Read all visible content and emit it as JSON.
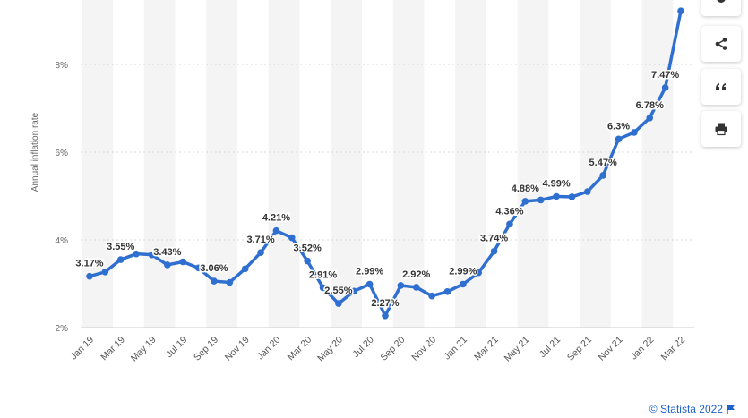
{
  "chart_data": {
    "type": "line",
    "xlabel": "",
    "ylabel": "Annual inflation rate",
    "ylim": [
      2,
      9.3
    ],
    "yticks": [
      2,
      4,
      6,
      8
    ],
    "ytick_labels": [
      "2%",
      "4%",
      "6%",
      "8%"
    ],
    "grid": true,
    "series_color": "#2f6fd0",
    "x": [
      "Jan 19",
      "Feb 19",
      "Mar 19",
      "Apr 19",
      "May 19",
      "Jun 19",
      "Jul 19",
      "Aug 19",
      "Sep 19",
      "Oct 19",
      "Nov 19",
      "Dec 19",
      "Jan 20",
      "Feb 20",
      "Mar 20",
      "Apr 20",
      "May 20",
      "Jun 20",
      "Jul 20",
      "Aug 20",
      "Sep 20",
      "Oct 20",
      "Nov 20",
      "Dec 20",
      "Jan 21",
      "Feb 21",
      "Mar 21",
      "Apr 21",
      "May 21",
      "Jun 21",
      "Jul 21",
      "Aug 21",
      "Sep 21",
      "Oct 21",
      "Nov 21",
      "Dec 21",
      "Jan 22",
      "Feb 22",
      "Mar 22"
    ],
    "xtick_labels": [
      "Jan 19",
      "Mar 19",
      "May 19",
      "Jul 19",
      "Sep 19",
      "Nov 19",
      "Jan 20",
      "Mar 20",
      "May 20",
      "Jul 20",
      "Sep 20",
      "Nov 20",
      "Jan 21",
      "Mar 21",
      "May 21",
      "Jul 21",
      "Sep 21",
      "Nov 21",
      "Jan 22",
      "Mar 22"
    ],
    "values": [
      3.17,
      3.27,
      3.55,
      3.68,
      3.66,
      3.43,
      3.5,
      3.36,
      3.06,
      3.03,
      3.34,
      3.71,
      4.21,
      4.05,
      3.52,
      2.91,
      2.55,
      2.83,
      2.99,
      2.27,
      2.96,
      2.92,
      2.72,
      2.82,
      2.99,
      3.25,
      3.74,
      4.36,
      4.88,
      4.91,
      4.99,
      4.98,
      5.1,
      5.47,
      6.3,
      6.45,
      6.78,
      7.47,
      9.22
    ],
    "data_labels": [
      {
        "i": 0,
        "text": "3.17%"
      },
      {
        "i": 2,
        "text": "3.55%"
      },
      {
        "i": 5,
        "text": "3.43%"
      },
      {
        "i": 8,
        "text": "3.06%"
      },
      {
        "i": 11,
        "text": "3.71%"
      },
      {
        "i": 12,
        "text": "4.21%"
      },
      {
        "i": 14,
        "text": "3.52%"
      },
      {
        "i": 15,
        "text": "2.91%"
      },
      {
        "i": 16,
        "text": "2.55%"
      },
      {
        "i": 18,
        "text": "2.99%"
      },
      {
        "i": 19,
        "text": "2.27%"
      },
      {
        "i": 21,
        "text": "2.92%"
      },
      {
        "i": 24,
        "text": "2.99%"
      },
      {
        "i": 26,
        "text": "3.74%"
      },
      {
        "i": 27,
        "text": "4.36%"
      },
      {
        "i": 28,
        "text": "4.88%"
      },
      {
        "i": 30,
        "text": "4.99%"
      },
      {
        "i": 33,
        "text": "5.47%"
      },
      {
        "i": 34,
        "text": "6.3%"
      },
      {
        "i": 36,
        "text": "6.78%"
      },
      {
        "i": 37,
        "text": "7.47%"
      }
    ]
  },
  "toolbar": {
    "items": [
      {
        "name": "settings-button",
        "icon": "gear-icon"
      },
      {
        "name": "share-button",
        "icon": "share-icon"
      },
      {
        "name": "cite-button",
        "icon": "quote-icon"
      },
      {
        "name": "print-button",
        "icon": "print-icon"
      }
    ]
  },
  "footer": {
    "credit": "© Statista 2022",
    "flag_icon": "flag-icon"
  }
}
